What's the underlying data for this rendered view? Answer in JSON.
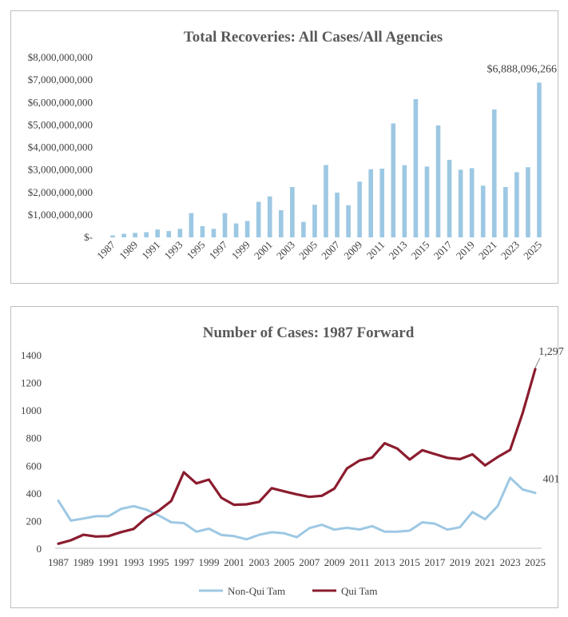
{
  "chart_data": [
    {
      "type": "bar",
      "title": "Total Recoveries: All Cases/All Agencies",
      "xlabel": "",
      "ylabel": "",
      "ylim": [
        0,
        8000000000
      ],
      "yticks": [
        0,
        1000000000,
        2000000000,
        3000000000,
        4000000000,
        5000000000,
        6000000000,
        7000000000,
        8000000000
      ],
      "ytick_labels": [
        "$-",
        "$1,000,000,000",
        "$2,000,000,000",
        "$3,000,000,000",
        "$4,000,000,000",
        "$5,000,000,000",
        "$6,000,000,000",
        "$7,000,000,000",
        "$8,000,000,000"
      ],
      "categories": [
        "1987",
        "1988",
        "1989",
        "1990",
        "1991",
        "1992",
        "1993",
        "1994",
        "1995",
        "1996",
        "1997",
        "1998",
        "1999",
        "2000",
        "2001",
        "2002",
        "2003",
        "2004",
        "2005",
        "2006",
        "2007",
        "2008",
        "2009",
        "2010",
        "2011",
        "2012",
        "2013",
        "2014",
        "2015",
        "2016",
        "2017",
        "2018",
        "2019",
        "2020",
        "2021",
        "2022",
        "2023",
        "2024",
        "2025"
      ],
      "xtick_labels": [
        "1987",
        "1989",
        "1991",
        "1993",
        "1995",
        "1997",
        "1999",
        "2001",
        "2003",
        "2005",
        "2007",
        "2009",
        "2011",
        "2013",
        "2015",
        "2017",
        "2019",
        "2021",
        "2023",
        "2025"
      ],
      "values": [
        86000000,
        160000000,
        200000000,
        230000000,
        350000000,
        280000000,
        380000000,
        1080000000,
        500000000,
        380000000,
        1080000000,
        620000000,
        730000000,
        1580000000,
        1820000000,
        1210000000,
        2240000000,
        690000000,
        1450000000,
        3220000000,
        1990000000,
        1430000000,
        2480000000,
        3030000000,
        3060000000,
        5070000000,
        3210000000,
        6150000000,
        3150000000,
        4980000000,
        3450000000,
        3010000000,
        3080000000,
        2300000000,
        5690000000,
        2240000000,
        2900000000,
        3120000000,
        6888096266
      ],
      "annotation": "$6,888,096,266",
      "color": "#9dc8e3"
    },
    {
      "type": "line",
      "title": "Number of Cases: 1987 Forward",
      "ylim": [
        0,
        1400
      ],
      "yticks": [
        0,
        200,
        400,
        600,
        800,
        1000,
        1200,
        1400
      ],
      "ytick_labels": [
        "0",
        "200",
        "400",
        "600",
        "800",
        "1000",
        "1200",
        "1400"
      ],
      "x": [
        "1987",
        "1988",
        "1989",
        "1990",
        "1991",
        "1992",
        "1993",
        "1994",
        "1995",
        "1996",
        "1997",
        "1998",
        "1999",
        "2000",
        "2001",
        "2002",
        "2003",
        "2004",
        "2005",
        "2006",
        "2007",
        "2008",
        "2009",
        "2010",
        "2011",
        "2012",
        "2013",
        "2014",
        "2015",
        "2016",
        "2017",
        "2018",
        "2019",
        "2020",
        "2021",
        "2022",
        "2023",
        "2024",
        "2025"
      ],
      "xtick_labels": [
        "1987",
        "1989",
        "1991",
        "1993",
        "1995",
        "1997",
        "1999",
        "2001",
        "2003",
        "2005",
        "2007",
        "2009",
        "2011",
        "2013",
        "2015",
        "2017",
        "2019",
        "2021",
        "2023",
        "2025"
      ],
      "series": [
        {
          "name": "Non-Qui Tam",
          "color": "#9dc8e3",
          "values": [
            345,
            200,
            215,
            232,
            232,
            285,
            305,
            280,
            238,
            188,
            182,
            120,
            142,
            96,
            88,
            65,
            98,
            116,
            108,
            80,
            146,
            170,
            135,
            148,
            136,
            160,
            120,
            120,
            128,
            188,
            178,
            135,
            152,
            262,
            210,
            305,
            510,
            425,
            401
          ],
          "end_label": "401"
        },
        {
          "name": "Qui Tam",
          "color": "#8b1c2e",
          "values": [
            33,
            58,
            98,
            85,
            88,
            117,
            140,
            220,
            272,
            343,
            550,
            470,
            497,
            365,
            315,
            318,
            336,
            435,
            412,
            390,
            372,
            380,
            432,
            578,
            635,
            656,
            760,
            722,
            642,
            710,
            682,
            655,
            645,
            680,
            600,
            660,
            712,
            980,
            1297
          ],
          "end_label": "1,297"
        }
      ],
      "legend": "bottom"
    }
  ]
}
